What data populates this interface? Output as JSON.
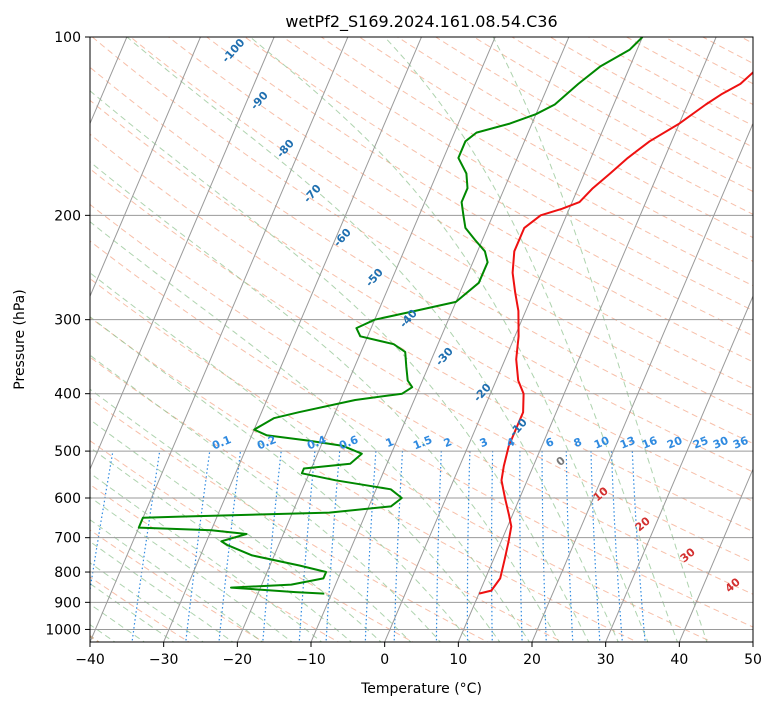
{
  "chart_data": {
    "type": "line",
    "subtype": "skew-t log-p diagram",
    "title": "wetPf2_S169.2024.161.08.54.C36",
    "xlabel": "Temperature (°C)",
    "ylabel": "Pressure (hPa)",
    "xlim": [
      -40,
      50
    ],
    "ylim": [
      1050,
      100
    ],
    "y_scale": "log",
    "x_ticks": [
      "−40",
      "−30",
      "−20",
      "−10",
      "0",
      "10",
      "20",
      "30",
      "40",
      "50"
    ],
    "y_ticks": [
      "100",
      "200",
      "300",
      "400",
      "500",
      "600",
      "700",
      "800",
      "900",
      "1000"
    ],
    "grid": true,
    "series": [
      {
        "color": "#ee1111",
        "points": [
          [
            10,
            870
          ],
          [
            11.5,
            860
          ],
          [
            12,
            820
          ],
          [
            11.5,
            760
          ],
          [
            11,
            710
          ],
          [
            10.5,
            670
          ],
          [
            9.5,
            640
          ],
          [
            8,
            600
          ],
          [
            6.5,
            560
          ],
          [
            6,
            530
          ],
          [
            5.5,
            490
          ],
          [
            5.5,
            460
          ],
          [
            5.5,
            430
          ],
          [
            4.5,
            400
          ],
          [
            3,
            380
          ],
          [
            1.5,
            350
          ],
          [
            0.5,
            320
          ],
          [
            -1,
            290
          ],
          [
            -2.5,
            270
          ],
          [
            -4,
            250
          ],
          [
            -5,
            230
          ],
          [
            -5,
            210
          ],
          [
            -3.5,
            200
          ],
          [
            -1,
            195
          ],
          [
            1,
            190
          ],
          [
            2,
            180
          ],
          [
            3.5,
            170
          ],
          [
            5,
            160
          ],
          [
            7,
            150
          ],
          [
            10,
            140
          ],
          [
            12.5,
            130
          ],
          [
            14,
            125
          ],
          [
            16,
            120
          ],
          [
            17,
            115
          ],
          [
            18,
            110
          ],
          [
            19,
            105
          ],
          [
            19.5,
            100
          ]
        ]
      },
      {
        "color": "#008800",
        "points": [
          [
            -11,
            870
          ],
          [
            -15,
            865
          ],
          [
            -24,
            850
          ],
          [
            -16,
            840
          ],
          [
            -12,
            820
          ],
          [
            -12,
            800
          ],
          [
            -16,
            780
          ],
          [
            -23,
            750
          ],
          [
            -27,
            720
          ],
          [
            -28,
            710
          ],
          [
            -25,
            690
          ],
          [
            -30,
            680
          ],
          [
            -40,
            673
          ],
          [
            -40,
            648
          ],
          [
            -35,
            645
          ],
          [
            -15,
            635
          ],
          [
            -7,
            620
          ],
          [
            -6,
            600
          ],
          [
            -8,
            580
          ],
          [
            -12,
            570
          ],
          [
            -16,
            560
          ],
          [
            -21,
            545
          ],
          [
            -21,
            535
          ],
          [
            -15,
            525
          ],
          [
            -14,
            505
          ],
          [
            -17,
            490
          ],
          [
            -22,
            480
          ],
          [
            -28,
            470
          ],
          [
            -30,
            460
          ],
          [
            -29,
            450
          ],
          [
            -28,
            440
          ],
          [
            -25,
            430
          ],
          [
            -18,
            410
          ],
          [
            -12,
            400
          ],
          [
            -11,
            390
          ],
          [
            -12,
            380
          ],
          [
            -13,
            360
          ],
          [
            -14,
            340
          ],
          [
            -16,
            330
          ],
          [
            -21,
            320
          ],
          [
            -22,
            310
          ],
          [
            -20,
            300
          ],
          [
            -15,
            290
          ],
          [
            -10,
            280
          ],
          [
            -8,
            260
          ],
          [
            -8,
            240
          ],
          [
            -9,
            230
          ],
          [
            -11,
            220
          ],
          [
            -13,
            210
          ],
          [
            -14,
            200
          ],
          [
            -15,
            190
          ],
          [
            -15,
            180
          ],
          [
            -16,
            170
          ],
          [
            -18,
            160
          ],
          [
            -18,
            150
          ],
          [
            -17,
            145
          ],
          [
            -13,
            140
          ],
          [
            -10,
            135
          ],
          [
            -8,
            130
          ],
          [
            -6,
            120
          ],
          [
            -4,
            112
          ],
          [
            -1,
            105
          ],
          [
            0,
            100
          ]
        ]
      }
    ],
    "dry_adiabat_labels": [
      "-100",
      "-90",
      "-80",
      "-70",
      "-60",
      "-50",
      "-40",
      "-30",
      "-20",
      "-10"
    ],
    "moist_adiabat_labels": [
      "0",
      "10",
      "20",
      "30",
      "40"
    ],
    "mixing_ratio_labels": [
      "0.1",
      "0.2",
      "0.4",
      "0.6",
      "1",
      "1.5",
      "2",
      "3",
      "4",
      "6",
      "8",
      "10",
      "13",
      "16",
      "20",
      "25",
      "30",
      "36"
    ],
    "colors": {
      "temperature": "#ee1111",
      "dewpoint": "#008800",
      "isotherm": "#9a9a9a",
      "isobar": "#9a9a9a",
      "dry_adiabat_line": "#f4a98c",
      "dry_adiabat_text": "#1f6fb0",
      "moist_adiabat_line": "#8cc08c",
      "moist_adiabat_text": "#d32f2f",
      "mixing_ratio_line": "#2f8ae0",
      "mixing_ratio_text": "#2f8ae0",
      "reference_curve": "#d8b38c",
      "zero_label": "#777777"
    }
  }
}
